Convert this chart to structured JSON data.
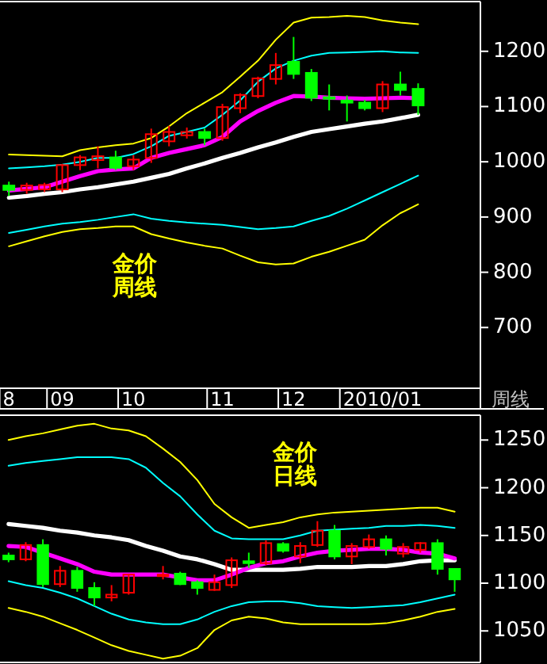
{
  "chart_data": [
    {
      "type": "candlestick",
      "annotations": [
        "金价周线",
        "周线"
      ],
      "categories": [
        "8",
        null,
        null,
        "09",
        null,
        null,
        null,
        "10",
        null,
        null,
        null,
        null,
        "11",
        null,
        null,
        null,
        "12",
        null,
        null,
        null,
        null,
        "2010/01",
        null,
        null,
        null,
        null,
        null
      ],
      "ohlc": [
        [
          957,
          964,
          938,
          949
        ],
        [
          949,
          962,
          942,
          957
        ],
        [
          950,
          962,
          945,
          958
        ],
        [
          950,
          996,
          945,
          994
        ],
        [
          994,
          1012,
          985,
          1008
        ],
        [
          1003,
          1028,
          988,
          1010
        ],
        [
          1008,
          1020,
          985,
          989
        ],
        [
          992,
          1012,
          985,
          1004
        ],
        [
          1007,
          1060,
          998,
          1050
        ],
        [
          1037,
          1065,
          1028,
          1054
        ],
        [
          1048,
          1062,
          1042,
          1054
        ],
        [
          1054,
          1060,
          1030,
          1043
        ],
        [
          1043,
          1105,
          1038,
          1099
        ],
        [
          1097,
          1124,
          1088,
          1121
        ],
        [
          1119,
          1154,
          1115,
          1151
        ],
        [
          1150,
          1197,
          1140,
          1175
        ],
        [
          1181,
          1226,
          1150,
          1159
        ],
        [
          1161,
          1168,
          1110,
          1116
        ],
        [
          1117,
          1140,
          1093,
          1115
        ],
        [
          1111,
          1120,
          1073,
          1107
        ],
        [
          1107,
          1112,
          1093,
          1097
        ],
        [
          1097,
          1146,
          1090,
          1140
        ],
        [
          1140,
          1163,
          1120,
          1130
        ],
        [
          1132,
          1142,
          1085,
          1102
        ],
        null,
        null,
        null
      ],
      "colors": [
        "#00ff00",
        "#ff0000",
        "#ff0000",
        "#ff0000",
        "#ff0000",
        "#ff0000",
        "#00ff00",
        "#ff0000",
        "#ff0000",
        "#ff0000",
        "#ff0000",
        "#00ff00",
        "#ff0000",
        "#ff0000",
        "#ff0000",
        "#ff0000",
        "#00ff00",
        "#00ff00",
        "#00ff00",
        "#00ff00",
        "#00ff00",
        "#ff0000",
        "#00ff00",
        "#00ff00",
        null,
        null,
        null
      ],
      "series": [
        {
          "type": "line",
          "color": "#ffff00",
          "values": [
            1013,
            1012,
            1011,
            1010,
            1021,
            1026,
            1030,
            1033,
            1043,
            1064,
            1088,
            1107,
            1126,
            1154,
            1183,
            1221,
            1252,
            1261,
            1262,
            1264,
            1262,
            1256,
            1252,
            1249,
            null,
            null,
            null
          ]
        },
        {
          "type": "line",
          "color": "#00ffff",
          "values": [
            988,
            990,
            992,
            995,
            1000,
            1007,
            1007,
            1014,
            1028,
            1047,
            1054,
            1062,
            1085,
            1111,
            1145,
            1169,
            1183,
            1192,
            1197,
            1198,
            1199,
            1200,
            1198,
            1197,
            null,
            null,
            null
          ]
        },
        {
          "type": "line",
          "color": "#ffffff",
          "values": [
            935,
            938,
            942,
            945,
            950,
            954,
            959,
            964,
            971,
            978,
            988,
            997,
            1007,
            1016,
            1026,
            1035,
            1045,
            1054,
            1059,
            1064,
            1069,
            1073,
            1079,
            1085,
            null,
            null,
            null
          ]
        },
        {
          "type": "line",
          "color": "#ff00ff",
          "values": [
            948,
            951,
            954,
            964,
            974,
            983,
            986,
            988,
            1007,
            1016,
            1023,
            1030,
            1045,
            1073,
            1092,
            1107,
            1119,
            1118,
            1116,
            1115,
            1114,
            1115,
            1116,
            1115,
            null,
            null,
            null
          ]
        },
        {
          "type": "line",
          "color": "#00ffff",
          "values": [
            871,
            877,
            883,
            888,
            891,
            895,
            900,
            905,
            897,
            893,
            890,
            888,
            886,
            882,
            878,
            880,
            883,
            893,
            902,
            915,
            930,
            945,
            960,
            975,
            null,
            null,
            null
          ]
        },
        {
          "type": "line",
          "color": "#ffff00",
          "values": [
            847,
            856,
            865,
            873,
            878,
            880,
            883,
            883,
            869,
            861,
            854,
            848,
            843,
            830,
            818,
            814,
            816,
            828,
            837,
            848,
            859,
            885,
            907,
            923,
            null,
            null,
            null
          ]
        }
      ],
      "ylim": [
        590,
        1290
      ],
      "yticks": [
        700,
        800,
        900,
        1000,
        1100,
        1200
      ]
    },
    {
      "type": "candlestick",
      "annotations": [
        "金价日线"
      ],
      "tick_labels": "y",
      "categories": [
        null,
        null,
        null,
        null,
        null,
        null,
        null,
        null,
        null,
        null,
        null,
        null,
        null,
        null,
        null,
        null,
        null,
        null,
        null,
        null,
        null,
        null,
        null,
        null,
        null,
        null,
        null,
        null
      ],
      "ohlc": [
        [
          1129,
          1132,
          1122,
          1125
        ],
        [
          1125,
          1143,
          1123,
          1140
        ],
        [
          1140,
          1146,
          1096,
          1099
        ],
        [
          1099,
          1118,
          1096,
          1113
        ],
        [
          1113,
          1117,
          1091,
          1095
        ],
        [
          1095,
          1101,
          1076,
          1085
        ],
        [
          1085,
          1098,
          1081,
          1088
        ],
        [
          1090,
          1110,
          1088,
          1109
        ],
        null,
        [
          1108,
          1118,
          1104,
          1109
        ],
        [
          1110,
          1112,
          1098,
          1099
        ],
        [
          1101,
          1103,
          1088,
          1095
        ],
        [
          1093,
          1109,
          1092,
          1101
        ],
        [
          1098,
          1127,
          1095,
          1124
        ],
        [
          1123,
          1132,
          1116,
          1121
        ],
        [
          1121,
          1145,
          1119,
          1142
        ],
        [
          1141,
          1143,
          1132,
          1134
        ],
        [
          1128,
          1143,
          1121,
          1139
        ],
        [
          1140,
          1165,
          1138,
          1155
        ],
        [
          1155,
          1161,
          1125,
          1128
        ],
        [
          1128,
          1142,
          1120,
          1139
        ],
        [
          1138,
          1151,
          1136,
          1146
        ],
        [
          1146,
          1150,
          1129,
          1136
        ],
        [
          1131,
          1142,
          1127,
          1138
        ],
        [
          1135,
          1143,
          1132,
          1142
        ],
        [
          1142,
          1146,
          1109,
          1115
        ],
        [
          1115,
          1115,
          1091,
          1104
        ],
        null
      ],
      "colors": [
        "#00ff00",
        "#ff0000",
        "#00ff00",
        "#ff0000",
        "#00ff00",
        "#00ff00",
        "#ff0000",
        "#ff0000",
        null,
        "#ff0000",
        "#00ff00",
        "#00ff00",
        "#ff0000",
        "#ff0000",
        "#00ff00",
        "#ff0000",
        "#00ff00",
        "#ff0000",
        "#ff0000",
        "#00ff00",
        "#ff0000",
        "#ff0000",
        "#00ff00",
        "#ff0000",
        "#ff0000",
        "#00ff00",
        "#00ff00",
        null
      ],
      "series": [
        {
          "type": "line",
          "color": "#ffff00",
          "values": [
            1250,
            1254,
            1257,
            1261,
            1265,
            1267,
            1262,
            1260,
            1254,
            1241,
            1227,
            1208,
            1183,
            1169,
            1158,
            1161,
            1164,
            1169,
            1172,
            1174,
            1175,
            1176,
            1177,
            1178,
            1179,
            1179,
            1175,
            null
          ]
        },
        {
          "type": "line",
          "color": "#00ffff",
          "values": [
            1223,
            1226,
            1228,
            1230,
            1232,
            1232,
            1232,
            1230,
            1221,
            1205,
            1191,
            1172,
            1155,
            1147,
            1146,
            1146,
            1146,
            1150,
            1155,
            1156,
            1157,
            1158,
            1160,
            1160,
            1161,
            1160,
            1158,
            null
          ]
        },
        {
          "type": "line",
          "color": "#ffffff",
          "values": [
            1162,
            1160,
            1158,
            1155,
            1153,
            1150,
            1148,
            1145,
            1139,
            1134,
            1128,
            1125,
            1120,
            1114,
            1114,
            1114,
            1114,
            1115,
            1117,
            1117,
            1117,
            1118,
            1118,
            1120,
            1123,
            1124,
            1124,
            null
          ]
        },
        {
          "type": "line",
          "color": "#ff00ff",
          "values": [
            1139,
            1138,
            1132,
            1126,
            1120,
            1112,
            1109,
            1109,
            1109,
            1109,
            1106,
            1103,
            1103,
            1109,
            1116,
            1121,
            1123,
            1128,
            1132,
            1134,
            1135,
            1136,
            1136,
            1135,
            1132,
            1131,
            1126,
            null
          ]
        },
        {
          "type": "line",
          "color": "#00ffff",
          "values": [
            1102,
            1098,
            1095,
            1090,
            1084,
            1076,
            1068,
            1062,
            1059,
            1057,
            1057,
            1062,
            1070,
            1076,
            1080,
            1081,
            1081,
            1079,
            1076,
            1075,
            1074,
            1075,
            1076,
            1077,
            1080,
            1084,
            1088,
            null
          ]
        },
        {
          "type": "line",
          "color": "#ffff00",
          "values": [
            1074,
            1070,
            1065,
            1058,
            1051,
            1043,
            1035,
            1029,
            1025,
            1021,
            1024,
            1032,
            1051,
            1061,
            1065,
            1063,
            1059,
            1057,
            1057,
            1057,
            1057,
            1057,
            1058,
            1061,
            1065,
            1070,
            1073,
            null
          ]
        }
      ],
      "ylim": [
        1017,
        1276
      ],
      "yticks": [
        1050,
        1100,
        1150,
        1200,
        1250
      ]
    }
  ]
}
